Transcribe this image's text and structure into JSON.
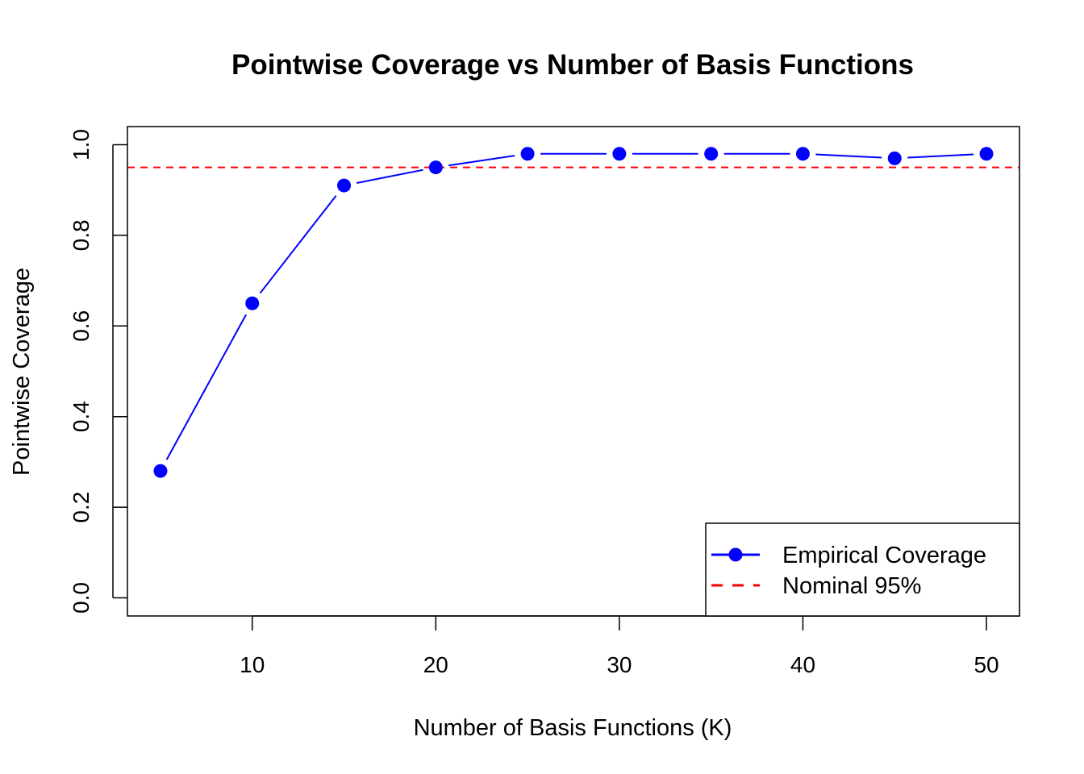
{
  "chart_data": {
    "type": "line",
    "title": "Pointwise Coverage vs Number of Basis Functions",
    "xlabel": "Number of Basis Functions (K)",
    "ylabel": "Pointwise Coverage",
    "x": [
      5,
      10,
      15,
      20,
      25,
      30,
      35,
      40,
      45,
      50
    ],
    "series": [
      {
        "name": "Empirical Coverage",
        "values": [
          0.28,
          0.65,
          0.91,
          0.95,
          0.98,
          0.98,
          0.98,
          0.98,
          0.97,
          0.98
        ],
        "color": "#0000ff",
        "style": "line-with-points"
      }
    ],
    "reference_lines": [
      {
        "name": "Nominal 95%",
        "y": 0.95,
        "color": "#ff0000",
        "style": "dashed"
      }
    ],
    "xlim": [
      3.2,
      51.8
    ],
    "ylim": [
      -0.04,
      1.04
    ],
    "xticks": [
      10,
      20,
      30,
      40,
      50
    ],
    "xtick_labels": [
      "10",
      "20",
      "30",
      "40",
      "50"
    ],
    "yticks": [
      0.0,
      0.2,
      0.4,
      0.6,
      0.8,
      1.0
    ],
    "ytick_labels": [
      "0.0",
      "0.2",
      "0.4",
      "0.6",
      "0.8",
      "1.0"
    ],
    "grid": false,
    "legend_position": "bottom-right",
    "legend": [
      {
        "label": "Empirical Coverage",
        "symbol": "line-point",
        "color": "#0000ff"
      },
      {
        "label": "Nominal 95%",
        "symbol": "dashed-line",
        "color": "#ff0000"
      }
    ]
  }
}
